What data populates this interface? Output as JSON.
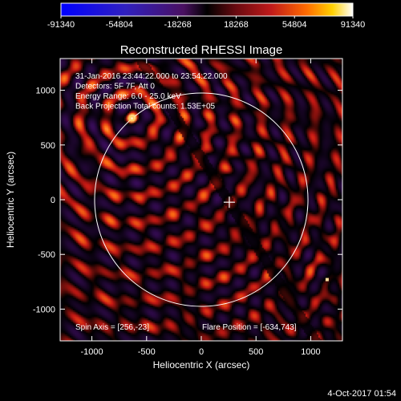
{
  "chart_data": {
    "type": "heatmap",
    "title": "Reconstructed RHESSI Image",
    "xlabel": "Heliocentric X (arcsec)",
    "ylabel": "Heliocentric Y (arcsec)",
    "xlim": [
      -1290,
      1290
    ],
    "ylim": [
      -1290,
      1290
    ],
    "xticks": [
      -1000,
      -500,
      0,
      500,
      1000
    ],
    "yticks": [
      -1000,
      -500,
      0,
      500,
      1000
    ],
    "colorbar": {
      "min": -91340,
      "max": 91340,
      "tick_values": [
        -91340,
        -54804,
        -18268,
        18268,
        54804,
        91340
      ],
      "tick_labels": [
        "-91340",
        "-54804",
        "-18268",
        "18268",
        "54804",
        "91340"
      ]
    },
    "annotations": [
      "31-Jan-2016 23:44:22.000 to 23:54:22.000",
      "Detectors: 5F 7F, Att 0",
      "Energy Range: 6.0 - 25.0 keV",
      "Back Projection    Total counts: 1.53E+05"
    ],
    "spin_axis_text": "Spin Axis = [256,-23]",
    "flare_position_text": "Flare Position = [-634,743]",
    "sun_disk": {
      "center": [
        0,
        0
      ],
      "radius": 975
    },
    "spin_axis": [
      256,
      -23
    ],
    "flare_position": [
      -634,
      743
    ],
    "secondary_source": [
      1150,
      -730
    ],
    "grid": false
  },
  "footer": {
    "date_text": "4-Oct-2017 01:54"
  }
}
